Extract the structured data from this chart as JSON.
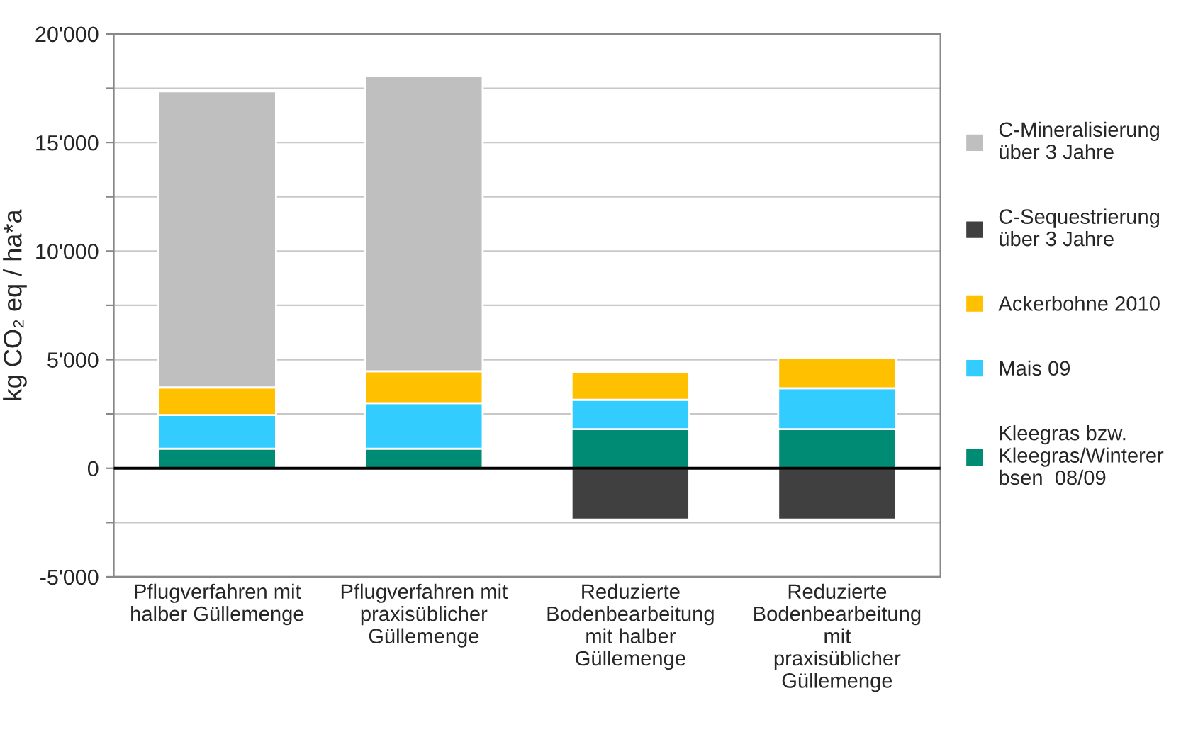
{
  "chart_data": {
    "type": "bar",
    "stacked": true,
    "ylabel": "kg CO₂ eq / ha*a",
    "categories": [
      "Pflugverfahren mit\nhalber Güllemenge",
      "Pflugverfahren mit\npraxisüblicher\nGüllemenge",
      "Reduzierte\nBodenbearbeitung\nmit halber\nGüllemenge",
      "Reduzierte\nBodenbearbeitung\nmit\npraxisüblicher\nGüllemenge"
    ],
    "series": [
      {
        "name": "Kleegras bzw.\nKleegras/Winterer\nbsen  08/09",
        "color": "#008b74",
        "values": [
          900,
          900,
          1800,
          1800
        ]
      },
      {
        "name": "Mais 09",
        "color": "#33ccff",
        "values": [
          1550,
          2100,
          1350,
          1880
        ]
      },
      {
        "name": "Ackerbohne 2010",
        "color": "#ffc000",
        "values": [
          1270,
          1470,
          1270,
          1400
        ]
      },
      {
        "name": "C-Sequestrierung\nüber 3 Jahre",
        "color": "#404040",
        "values": [
          null,
          null,
          -2360,
          -2360
        ]
      },
      {
        "name": "C-Mineralisierung\nüber 3 Jahre",
        "color": "#bfbfbf",
        "values": [
          13640,
          13590,
          null,
          null
        ]
      }
    ],
    "ylim": [
      -5000,
      20000
    ],
    "yticks": [
      {
        "value": -5000,
        "label": "-5'000"
      },
      {
        "value": -2500,
        "label": null
      },
      {
        "value": 0,
        "label": "0"
      },
      {
        "value": 2500,
        "label": null
      },
      {
        "value": 5000,
        "label": "5'000"
      },
      {
        "value": 7500,
        "label": null
      },
      {
        "value": 10000,
        "label": "10'000"
      },
      {
        "value": 12500,
        "label": null
      },
      {
        "value": 15000,
        "label": "15'000"
      },
      {
        "value": 17500,
        "label": null
      },
      {
        "value": 20000,
        "label": "20'000"
      }
    ],
    "grid": "y",
    "legend": "right"
  }
}
